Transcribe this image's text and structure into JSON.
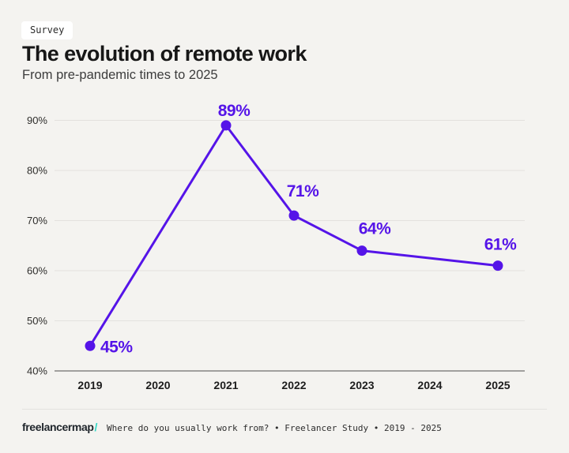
{
  "header": {
    "badge": "Survey",
    "title": "The evolution of remote work",
    "subtitle": "From pre-pandemic times to 2025"
  },
  "footer": {
    "logo_text": "freelancermap",
    "logo_slash": "/",
    "source": "Where do you usually work from? • Freelancer Study • 2019 - 2025"
  },
  "chart_data": {
    "type": "line",
    "title": "The evolution of remote work",
    "subtitle": "From pre-pandemic times to 2025",
    "categories": [
      "2019",
      "2020",
      "2021",
      "2022",
      "2023",
      "2024",
      "2025"
    ],
    "series": [
      {
        "points": [
          {
            "category": "2019",
            "value": 45,
            "label": "45%"
          },
          {
            "category": "2021",
            "value": 89,
            "label": "89%"
          },
          {
            "category": "2022",
            "value": 71,
            "label": "71%"
          },
          {
            "category": "2023",
            "value": 64,
            "label": "64%"
          },
          {
            "category": "2025",
            "value": 61,
            "label": "61%"
          }
        ]
      }
    ],
    "y_ticks": [
      {
        "value": 90,
        "label": "90%"
      },
      {
        "value": 80,
        "label": "80%"
      },
      {
        "value": 70,
        "label": "70%"
      },
      {
        "value": 60,
        "label": "60%"
      },
      {
        "value": 50,
        "label": "50%"
      },
      {
        "value": 40,
        "label": "40%"
      }
    ],
    "ylim": [
      40,
      95
    ],
    "grid": "horizontal",
    "legend": "none",
    "colors": {
      "line": "#5514e8",
      "point": "#5514e8",
      "data_label": "#5514e8",
      "grid": "#e3e1de",
      "axis": "#6f6e6c",
      "logo_slash": "#2fd7c4",
      "background": "#f4f3f0"
    }
  }
}
